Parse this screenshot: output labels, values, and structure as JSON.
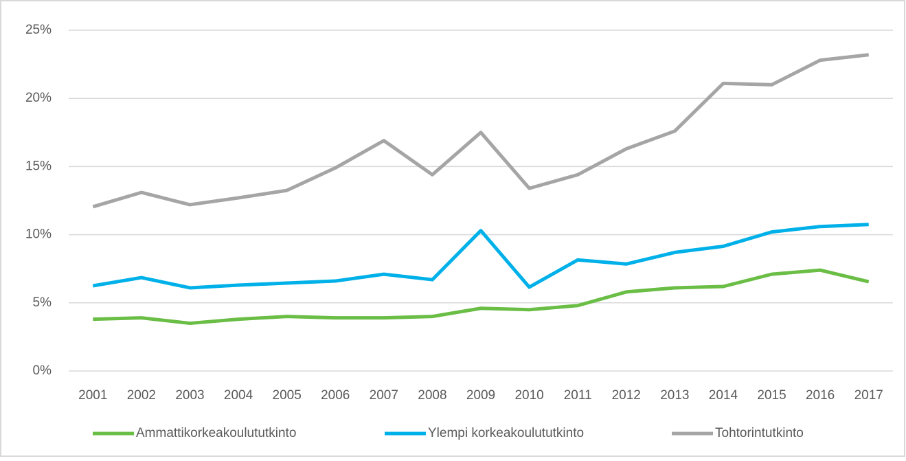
{
  "chart_data": {
    "type": "line",
    "categories": [
      "2001",
      "2002",
      "2003",
      "2004",
      "2005",
      "2006",
      "2007",
      "2008",
      "2009",
      "2010",
      "2011",
      "2012",
      "2013",
      "2014",
      "2015",
      "2016",
      "2017"
    ],
    "series": [
      {
        "name": "Ammattikorkeakoulututkinto",
        "color": "#6abd45",
        "values": [
          3.8,
          3.9,
          3.5,
          3.8,
          4.0,
          3.9,
          3.9,
          4.0,
          4.6,
          4.5,
          4.8,
          5.8,
          6.1,
          6.2,
          7.1,
          7.4,
          6.55
        ]
      },
      {
        "name": "Ylempi korkeakoulututkinto",
        "color": "#00b0e8",
        "values": [
          6.25,
          6.85,
          6.1,
          6.3,
          6.45,
          6.6,
          7.1,
          6.7,
          10.3,
          6.15,
          8.15,
          7.85,
          8.7,
          9.15,
          10.2,
          10.6,
          10.75
        ]
      },
      {
        "name": "Tohtorintutkinto",
        "color": "#a5a5a5",
        "values": [
          12.05,
          13.1,
          12.2,
          12.7,
          13.25,
          14.9,
          16.9,
          14.4,
          17.5,
          13.4,
          14.4,
          16.3,
          17.6,
          21.1,
          21.0,
          22.8,
          23.2
        ]
      }
    ],
    "ylim": [
      0,
      25
    ],
    "yticks": [
      {
        "value": 0,
        "label": "0%"
      },
      {
        "value": 5,
        "label": "5%"
      },
      {
        "value": 10,
        "label": "10%"
      },
      {
        "value": 15,
        "label": "15%"
      },
      {
        "value": 20,
        "label": "20%"
      },
      {
        "value": 25,
        "label": "25%"
      }
    ],
    "grid": true,
    "legend": "bottom"
  }
}
